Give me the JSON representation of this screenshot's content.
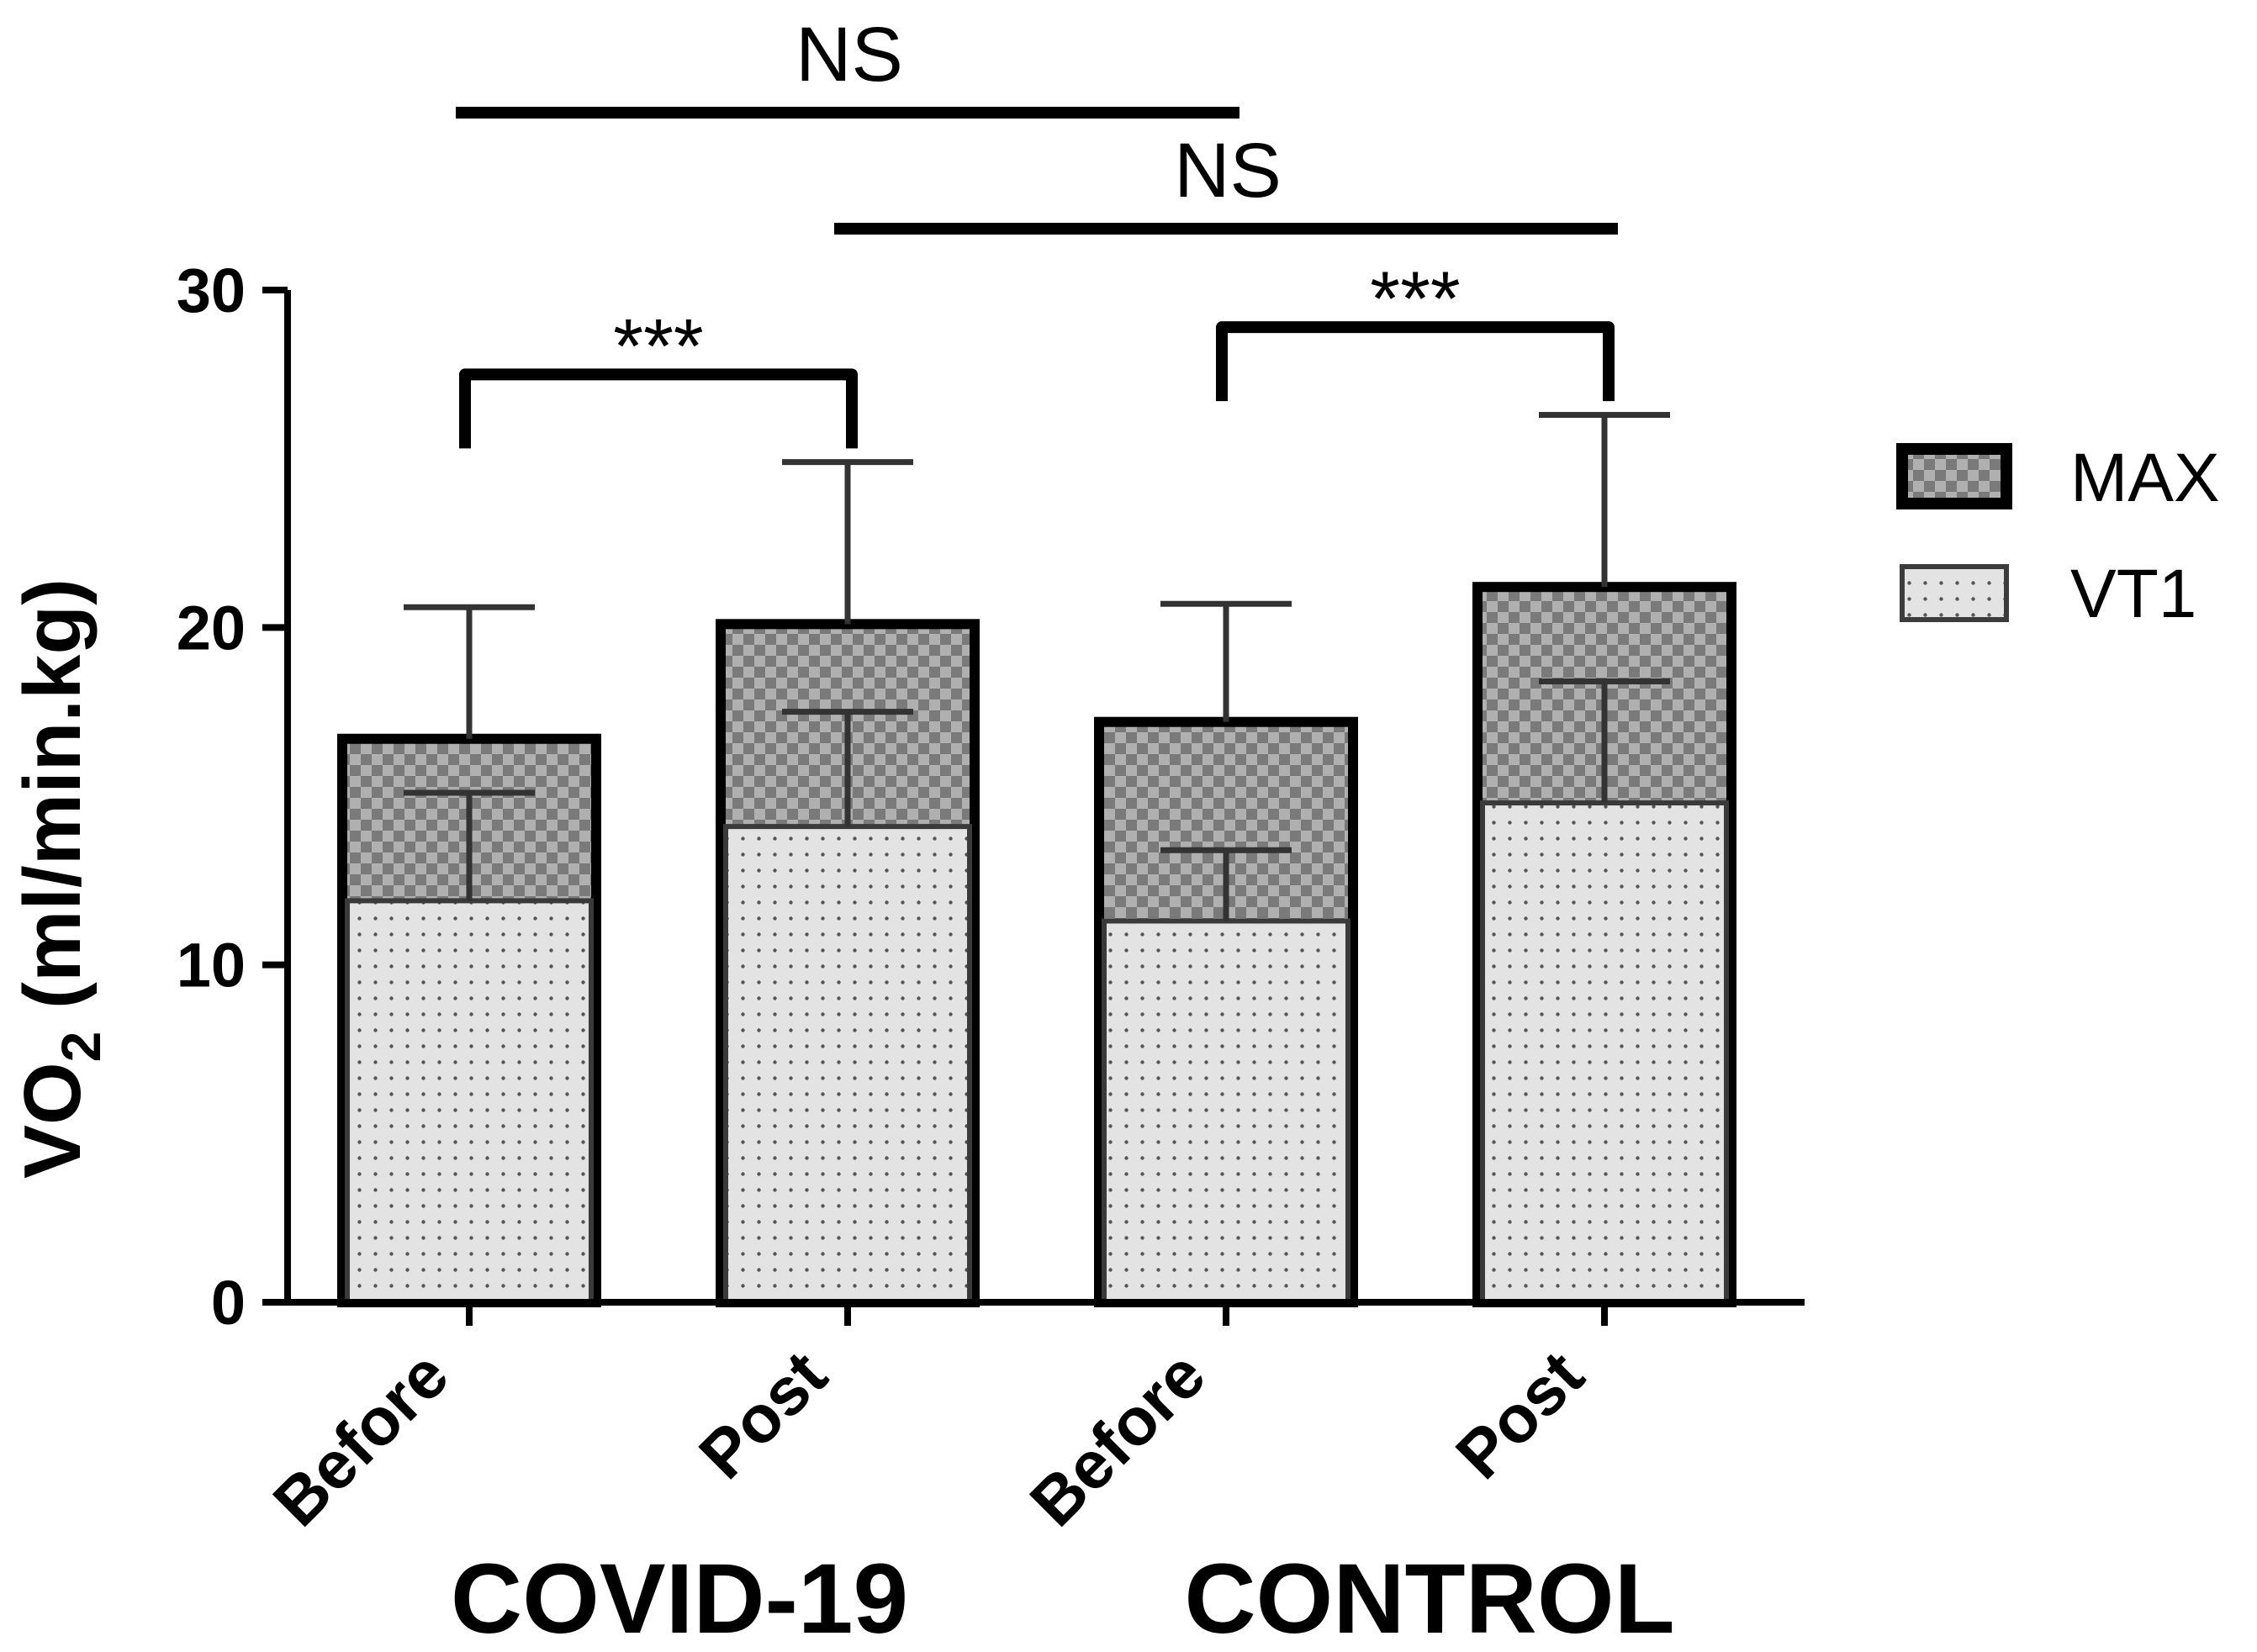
{
  "chart_data": {
    "type": "bar",
    "stacked": false,
    "overlapping": true,
    "categories": [
      "Before",
      "Post",
      "Before",
      "Post"
    ],
    "groups": [
      {
        "label": "COVID-19",
        "categories": [
          0,
          1
        ]
      },
      {
        "label": "CONTROL",
        "categories": [
          2,
          3
        ]
      }
    ],
    "series": [
      {
        "name": "MAX",
        "pattern": "checkerboard",
        "values": [
          16.7,
          20.1,
          17.2,
          21.2
        ],
        "error": [
          3.9,
          4.8,
          3.5,
          5.1
        ]
      },
      {
        "name": "VT1",
        "pattern": "dotted",
        "values": [
          11.9,
          14.1,
          11.3,
          14.8
        ],
        "error": [
          3.2,
          3.4,
          2.1,
          3.6
        ]
      }
    ],
    "legend": [
      "MAX",
      "VT1"
    ],
    "legend_position": "right",
    "ylabel_main": "VO",
    "ylabel_sub": "2",
    "ylabel_units": " (ml/min.kg)",
    "xlabel": "",
    "ylim": [
      0,
      30
    ],
    "yticks": [
      0,
      10,
      20,
      30
    ],
    "significance": [
      {
        "from": 0,
        "to": 1,
        "label": "***",
        "style": "bracket"
      },
      {
        "from": 2,
        "to": 3,
        "label": "***",
        "style": "bracket"
      },
      {
        "from": 0,
        "to": 2,
        "label": "NS",
        "style": "line"
      },
      {
        "from": 1,
        "to": 3,
        "label": "NS",
        "style": "line"
      }
    ],
    "colors": {
      "max_dark": "#7a7a7a",
      "max_light": "#b0b0b0",
      "vt1_fill": "#e3e3e3",
      "vt1_dot": "#555555",
      "ink": "#000000"
    }
  }
}
